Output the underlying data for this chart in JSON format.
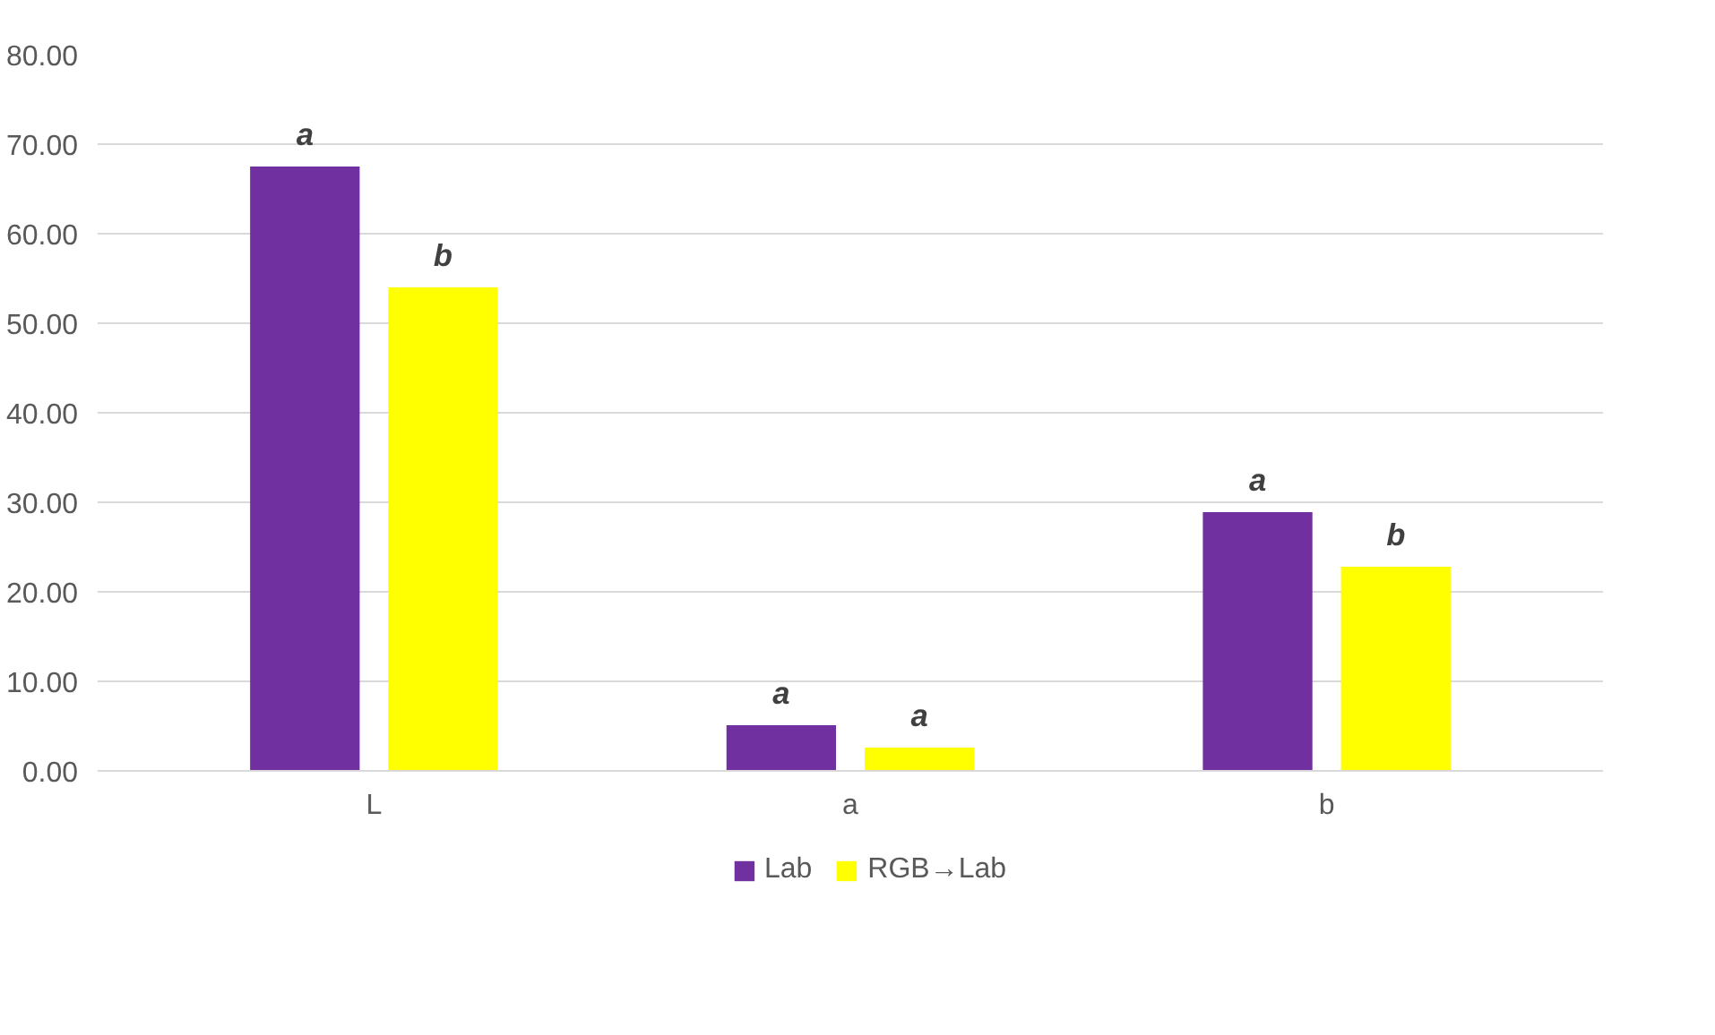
{
  "chart_data": {
    "type": "bar",
    "categories": [
      "L",
      "a",
      "b"
    ],
    "series": [
      {
        "name": "Lab",
        "color": "#7030a0",
        "values": [
          67.5,
          5.1,
          28.9
        ]
      },
      {
        "name": "RGB→Lab",
        "color": "#ffff00",
        "values": [
          54.0,
          2.6,
          22.8
        ]
      }
    ],
    "ylim": [
      0,
      80
    ],
    "yticks": [
      {
        "value": 0,
        "label": "0.00"
      },
      {
        "value": 10,
        "label": "10.00"
      },
      {
        "value": 20,
        "label": "20.00"
      },
      {
        "value": 30,
        "label": "30.00"
      },
      {
        "value": 40,
        "label": "40.00"
      },
      {
        "value": 50,
        "label": "50.00"
      },
      {
        "value": 60,
        "label": "60.00"
      },
      {
        "value": 70,
        "label": "70.00"
      },
      {
        "value": 80,
        "label": "80.00"
      }
    ],
    "grid": "y",
    "legend": "bottom",
    "annotations": [
      "a",
      "b",
      "a",
      "a",
      "a",
      "b"
    ]
  }
}
